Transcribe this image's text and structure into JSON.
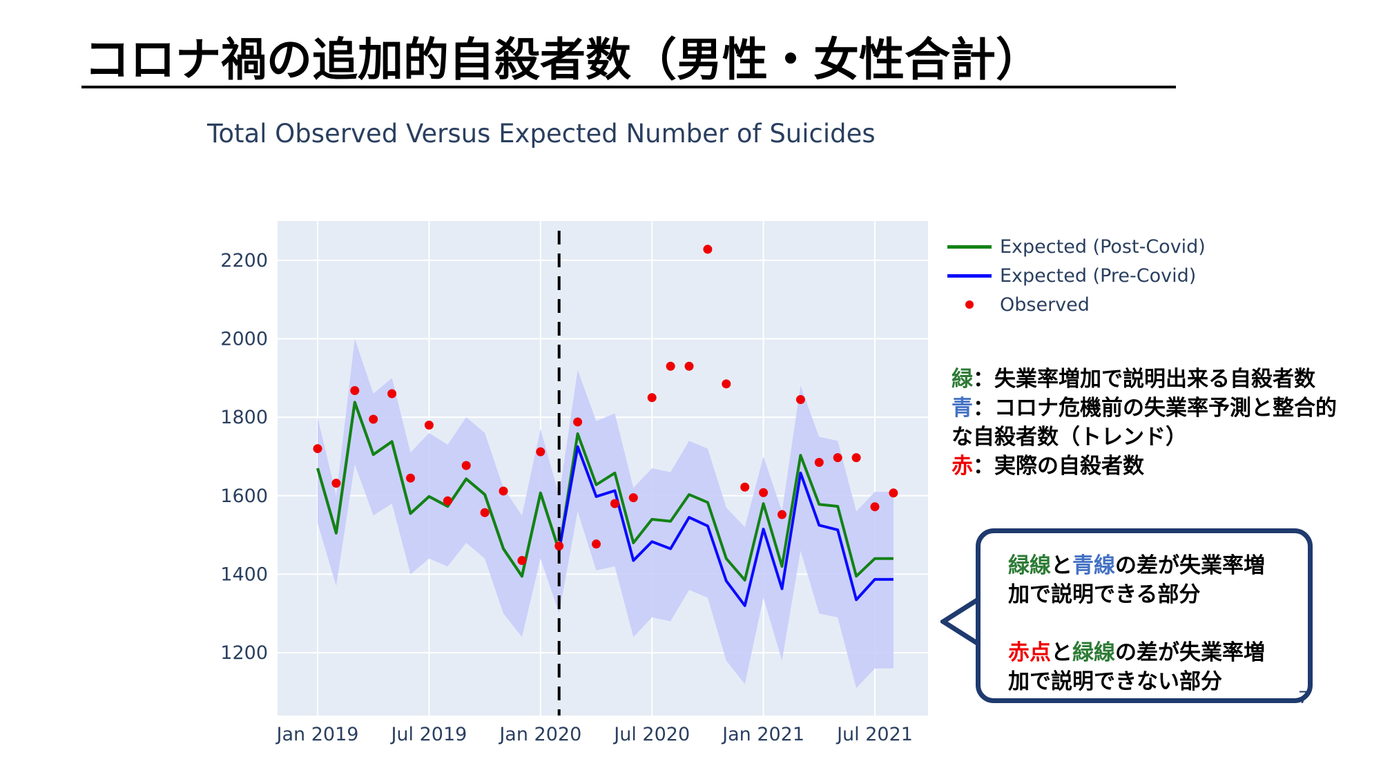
{
  "slide": {
    "title": "コロナ禍の追加的自殺者数（男性・女性合計）",
    "page_number": "7"
  },
  "colors": {
    "post_covid": "#138216",
    "pre_covid": "#0a0aff",
    "observed": "#ee0000",
    "band": "#c8cdfa",
    "plot_bg": "#e5ecf6",
    "green_text": "#2d7b35",
    "blue_text": "#4472c4",
    "red_text": "#ee0000"
  },
  "notes": {
    "green_key": "緑",
    "green_text": "：失業率増加で説明出来る自殺者数",
    "blue_key": "青",
    "blue_text_1": "：コロナ危機前の失業率予測と整合的",
    "blue_text_2": "な自殺者数（トレンド）",
    "red_key": "赤",
    "red_text": "：実際の自殺者数"
  },
  "callout": {
    "p1_a": "緑線",
    "p1_b": "と",
    "p1_c": "青線",
    "p1_d": "の差が失業率増",
    "p1_e": "加で説明できる部分",
    "p2_a": "赤点",
    "p2_b": "と",
    "p2_c": "緑線",
    "p2_d": "の差が失業率増",
    "p2_e": "加で説明できない部分"
  },
  "chart_data": {
    "type": "line",
    "title": "Total Observed Versus Expected Number of Suicides",
    "xlabel": "",
    "ylabel": "",
    "x": [
      "2019-01",
      "2019-02",
      "2019-03",
      "2019-04",
      "2019-05",
      "2019-06",
      "2019-07",
      "2019-08",
      "2019-09",
      "2019-10",
      "2019-11",
      "2019-12",
      "2020-01",
      "2020-02",
      "2020-03",
      "2020-04",
      "2020-05",
      "2020-06",
      "2020-07",
      "2020-08",
      "2020-09",
      "2020-10",
      "2020-11",
      "2020-12",
      "2021-01",
      "2021-02",
      "2021-03",
      "2021-04",
      "2021-05",
      "2021-06",
      "2021-07",
      "2021-08"
    ],
    "ylim": [
      1040,
      2300
    ],
    "y_ticks": [
      1200,
      1400,
      1600,
      1800,
      2000,
      2200
    ],
    "x_ticks": [
      "Jan 2019",
      "Jul 2019",
      "Jan 2020",
      "Jul 2020",
      "Jan 2021",
      "Jul 2021"
    ],
    "x_tick_dates": [
      "2019-01",
      "2019-07",
      "2020-01",
      "2020-07",
      "2021-01",
      "2021-07"
    ],
    "vline": "2020-02",
    "grid": true,
    "legend_position": "right",
    "band": {
      "upper": [
        1800,
        1600,
        2000,
        1860,
        1900,
        1710,
        1760,
        1730,
        1800,
        1760,
        1620,
        1550,
        1770,
        1600,
        1920,
        1790,
        1810,
        1620,
        1670,
        1660,
        1740,
        1720,
        1570,
        1520,
        1700,
        1560,
        1880,
        1750,
        1740,
        1560,
        1610,
        1610
      ],
      "lower": [
        1530,
        1370,
        1680,
        1550,
        1580,
        1400,
        1440,
        1420,
        1480,
        1440,
        1300,
        1240,
        1440,
        1300,
        1560,
        1410,
        1420,
        1240,
        1290,
        1280,
        1360,
        1340,
        1180,
        1120,
        1340,
        1180,
        1460,
        1300,
        1290,
        1110,
        1160,
        1160
      ]
    },
    "series": [
      {
        "name": "Expected (Post-Covid)",
        "values": [
          1670,
          1505,
          1838,
          1705,
          1738,
          1555,
          1598,
          1573,
          1643,
          1603,
          1465,
          1395,
          1607,
          1460,
          1758,
          1628,
          1658,
          1480,
          1540,
          1535,
          1603,
          1583,
          1440,
          1385,
          1580,
          1420,
          1703,
          1578,
          1573,
          1395,
          1440,
          1440
        ]
      },
      {
        "name": "Expected (Pre-Covid)",
        "values": [
          null,
          null,
          null,
          null,
          null,
          null,
          null,
          null,
          null,
          null,
          null,
          null,
          null,
          1460,
          1725,
          1598,
          1613,
          1435,
          1483,
          1465,
          1545,
          1523,
          1383,
          1320,
          1515,
          1363,
          1658,
          1525,
          1513,
          1335,
          1387,
          1387
        ]
      },
      {
        "name": "Observed",
        "values": [
          1720,
          1632,
          1868,
          1795,
          1860,
          1645,
          1780,
          1587,
          1677,
          1557,
          1612,
          1435,
          1712,
          1472,
          1788,
          1477,
          1580,
          1595,
          1850,
          1930,
          1930,
          2228,
          1885,
          1622,
          1608,
          1552,
          1845,
          1685,
          1697,
          1697,
          1572,
          1607
        ]
      }
    ]
  }
}
